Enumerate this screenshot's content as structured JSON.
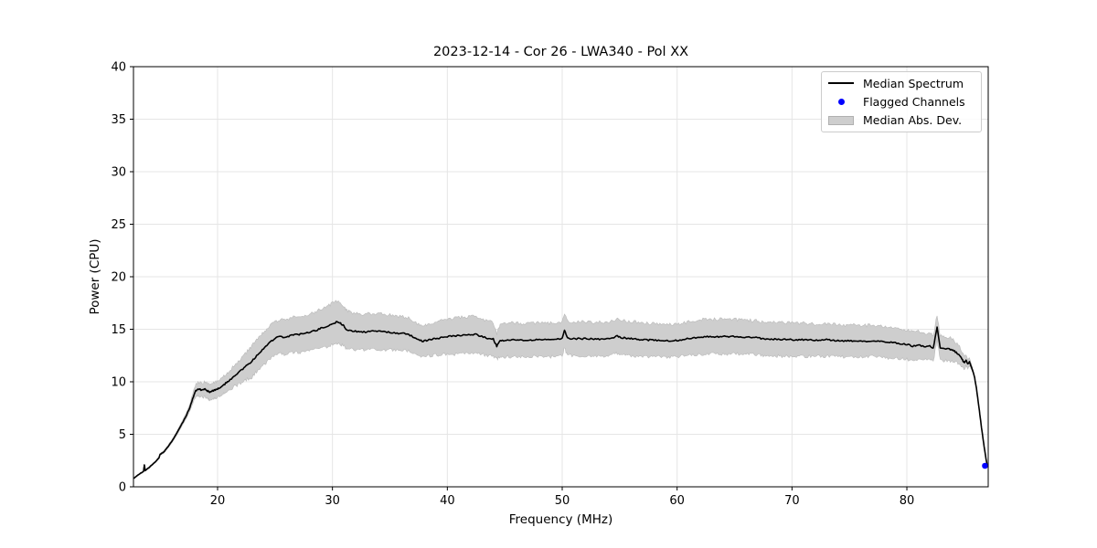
{
  "chart_data": {
    "type": "line",
    "title": "2023-12-14 - Cor 26 - LWA340 - Pol XX",
    "xlabel": "Frequency (MHz)",
    "ylabel": "Power (CPU)",
    "xlim": [
      12.68,
      87.08
    ],
    "ylim": [
      0,
      40
    ],
    "xticks": [
      20,
      30,
      40,
      50,
      60,
      70,
      80
    ],
    "yticks": [
      0,
      5,
      10,
      15,
      20,
      25,
      30,
      35,
      40
    ],
    "grid": true,
    "legend": {
      "position": "upper right",
      "entries": [
        {
          "label": "Median Spectrum",
          "type": "line",
          "color": "#000000"
        },
        {
          "label": "Flagged Channels",
          "type": "marker",
          "color": "#0000ff"
        },
        {
          "label": "Median Abs. Dev.",
          "type": "patch",
          "color": "#cecece"
        }
      ]
    },
    "style": {
      "line_color": "#000000",
      "band_color": "#cecece",
      "band_edge_color": "#b9b9b9",
      "flagged_color": "#0000ff",
      "grid_color": "#e5e5e5",
      "background": "#ffffff",
      "line_jitter": 0.07,
      "band_jitter": 0.16
    },
    "series": [
      {
        "name": "Median Spectrum",
        "type": "line",
        "color": "#000000",
        "point_format": [
          "freq_mhz",
          "power_cpu",
          "median_abs_dev"
        ],
        "points": [
          [
            12.76,
            0.85,
            0.05
          ],
          [
            13.0,
            1.05,
            0.05
          ],
          [
            13.3,
            1.3,
            0.06
          ],
          [
            13.55,
            1.45,
            0.06
          ],
          [
            13.63,
            2.1,
            0.06
          ],
          [
            13.7,
            1.55,
            0.07
          ],
          [
            14.0,
            1.8,
            0.08
          ],
          [
            14.3,
            2.1,
            0.08
          ],
          [
            14.6,
            2.4,
            0.09
          ],
          [
            14.9,
            2.75,
            0.1
          ],
          [
            15.0,
            3.1,
            0.1
          ],
          [
            15.3,
            3.3,
            0.12
          ],
          [
            15.6,
            3.7,
            0.13
          ],
          [
            16.0,
            4.3,
            0.15
          ],
          [
            16.4,
            5.0,
            0.17
          ],
          [
            16.8,
            5.8,
            0.2
          ],
          [
            17.2,
            6.6,
            0.25
          ],
          [
            17.6,
            7.6,
            0.35
          ],
          [
            17.9,
            8.6,
            0.5
          ],
          [
            18.1,
            9.15,
            0.6
          ],
          [
            18.3,
            9.3,
            0.65
          ],
          [
            18.5,
            9.25,
            0.68
          ],
          [
            18.7,
            9.2,
            0.7
          ],
          [
            18.9,
            9.3,
            0.7
          ],
          [
            19.1,
            9.15,
            0.72
          ],
          [
            19.3,
            9.0,
            0.72
          ],
          [
            19.5,
            9.1,
            0.73
          ],
          [
            19.7,
            9.2,
            0.75
          ],
          [
            19.9,
            9.25,
            0.75
          ],
          [
            20.1,
            9.35,
            0.78
          ],
          [
            20.4,
            9.55,
            0.8
          ],
          [
            20.7,
            9.85,
            0.85
          ],
          [
            21.0,
            10.1,
            0.9
          ],
          [
            21.4,
            10.5,
            1.0
          ],
          [
            21.8,
            10.85,
            1.1
          ],
          [
            22.2,
            11.2,
            1.2
          ],
          [
            22.6,
            11.6,
            1.35
          ],
          [
            23.0,
            11.95,
            1.5
          ],
          [
            23.4,
            12.5,
            1.55
          ],
          [
            23.8,
            12.9,
            1.6
          ],
          [
            24.2,
            13.4,
            1.6
          ],
          [
            24.6,
            13.8,
            1.6
          ],
          [
            25.0,
            14.15,
            1.6
          ],
          [
            25.4,
            14.3,
            1.62
          ],
          [
            25.8,
            14.25,
            1.63
          ],
          [
            26.2,
            14.35,
            1.65
          ],
          [
            26.6,
            14.45,
            1.67
          ],
          [
            27.0,
            14.5,
            1.7
          ],
          [
            27.4,
            14.55,
            1.7
          ],
          [
            27.8,
            14.65,
            1.72
          ],
          [
            28.2,
            14.8,
            1.75
          ],
          [
            28.6,
            14.9,
            1.8
          ],
          [
            29.0,
            15.1,
            1.85
          ],
          [
            29.4,
            15.2,
            1.9
          ],
          [
            29.8,
            15.4,
            1.95
          ],
          [
            30.1,
            15.55,
            2.0
          ],
          [
            30.4,
            15.7,
            2.0
          ],
          [
            30.7,
            15.6,
            2.0
          ],
          [
            31.0,
            15.3,
            1.9
          ],
          [
            31.2,
            14.95,
            1.85
          ],
          [
            31.5,
            14.85,
            1.8
          ],
          [
            32.0,
            14.8,
            1.72
          ],
          [
            32.5,
            14.75,
            1.7
          ],
          [
            33.0,
            14.75,
            1.7
          ],
          [
            33.5,
            14.8,
            1.7
          ],
          [
            34.0,
            14.8,
            1.7
          ],
          [
            34.5,
            14.75,
            1.68
          ],
          [
            35.0,
            14.7,
            1.65
          ],
          [
            35.5,
            14.65,
            1.63
          ],
          [
            36.0,
            14.6,
            1.6
          ],
          [
            36.5,
            14.55,
            1.58
          ],
          [
            37.0,
            14.3,
            1.55
          ],
          [
            37.5,
            14.0,
            1.5
          ],
          [
            37.9,
            13.85,
            1.48
          ],
          [
            38.3,
            13.95,
            1.5
          ],
          [
            38.7,
            14.05,
            1.55
          ],
          [
            39.1,
            14.15,
            1.6
          ],
          [
            39.5,
            14.2,
            1.65
          ],
          [
            40.0,
            14.3,
            1.7
          ],
          [
            40.5,
            14.35,
            1.72
          ],
          [
            41.0,
            14.4,
            1.75
          ],
          [
            41.5,
            14.42,
            1.75
          ],
          [
            42.0,
            14.45,
            1.75
          ],
          [
            42.5,
            14.5,
            1.73
          ],
          [
            43.0,
            14.3,
            1.7
          ],
          [
            43.5,
            14.15,
            1.65
          ],
          [
            44.0,
            14.05,
            1.6
          ],
          [
            44.3,
            13.4,
            1.2
          ],
          [
            44.6,
            13.9,
            1.55
          ],
          [
            45.0,
            13.95,
            1.57
          ],
          [
            45.5,
            14.0,
            1.6
          ],
          [
            46.0,
            14.0,
            1.6
          ],
          [
            46.5,
            13.95,
            1.6
          ],
          [
            47.0,
            13.95,
            1.6
          ],
          [
            47.5,
            14.0,
            1.6
          ],
          [
            48.0,
            14.0,
            1.6
          ],
          [
            48.5,
            14.0,
            1.6
          ],
          [
            49.0,
            14.0,
            1.6
          ],
          [
            49.5,
            14.05,
            1.6
          ],
          [
            50.0,
            14.1,
            1.62
          ],
          [
            50.2,
            14.9,
            1.65
          ],
          [
            50.45,
            14.15,
            1.62
          ],
          [
            51.0,
            14.1,
            1.6
          ],
          [
            51.5,
            14.1,
            1.6
          ],
          [
            52.0,
            14.1,
            1.6
          ],
          [
            52.5,
            14.08,
            1.6
          ],
          [
            53.0,
            14.05,
            1.6
          ],
          [
            53.5,
            14.08,
            1.6
          ],
          [
            54.0,
            14.1,
            1.6
          ],
          [
            54.4,
            14.2,
            1.62
          ],
          [
            54.8,
            14.35,
            1.63
          ],
          [
            55.2,
            14.2,
            1.62
          ],
          [
            55.6,
            14.15,
            1.62
          ],
          [
            56.0,
            14.1,
            1.65
          ],
          [
            56.5,
            14.05,
            1.62
          ],
          [
            57.0,
            14.0,
            1.6
          ],
          [
            57.5,
            13.98,
            1.58
          ],
          [
            58.0,
            13.95,
            1.57
          ],
          [
            58.5,
            13.92,
            1.56
          ],
          [
            59.0,
            13.9,
            1.55
          ],
          [
            59.5,
            13.92,
            1.55
          ],
          [
            60.0,
            13.95,
            1.55
          ],
          [
            60.5,
            14.02,
            1.58
          ],
          [
            61.0,
            14.1,
            1.6
          ],
          [
            61.5,
            14.18,
            1.62
          ],
          [
            62.0,
            14.25,
            1.65
          ],
          [
            62.5,
            14.28,
            1.65
          ],
          [
            63.0,
            14.3,
            1.65
          ],
          [
            63.5,
            14.3,
            1.65
          ],
          [
            64.0,
            14.3,
            1.65
          ],
          [
            64.5,
            14.3,
            1.65
          ],
          [
            65.0,
            14.3,
            1.65
          ],
          [
            65.5,
            14.27,
            1.63
          ],
          [
            66.0,
            14.25,
            1.62
          ],
          [
            66.5,
            14.22,
            1.6
          ],
          [
            67.0,
            14.2,
            1.6
          ],
          [
            67.4,
            14.1,
            1.6
          ],
          [
            67.8,
            14.05,
            1.6
          ],
          [
            68.2,
            14.05,
            1.6
          ],
          [
            68.6,
            14.05,
            1.6
          ],
          [
            69.0,
            14.05,
            1.6
          ],
          [
            69.5,
            14.02,
            1.6
          ],
          [
            70.0,
            14.0,
            1.6
          ],
          [
            70.5,
            14.0,
            1.58
          ],
          [
            71.0,
            14.0,
            1.57
          ],
          [
            71.5,
            13.97,
            1.56
          ],
          [
            72.0,
            13.95,
            1.55
          ],
          [
            72.5,
            13.97,
            1.55
          ],
          [
            73.0,
            14.0,
            1.55
          ],
          [
            73.5,
            13.95,
            1.53
          ],
          [
            74.0,
            13.9,
            1.52
          ],
          [
            74.5,
            13.9,
            1.52
          ],
          [
            75.0,
            13.9,
            1.5
          ],
          [
            75.5,
            13.87,
            1.5
          ],
          [
            76.0,
            13.85,
            1.5
          ],
          [
            76.5,
            13.87,
            1.5
          ],
          [
            77.0,
            13.9,
            1.5
          ],
          [
            77.5,
            13.85,
            1.5
          ],
          [
            78.0,
            13.8,
            1.48
          ],
          [
            78.5,
            13.75,
            1.47
          ],
          [
            79.0,
            13.7,
            1.45
          ],
          [
            79.5,
            13.6,
            1.42
          ],
          [
            80.0,
            13.55,
            1.4
          ],
          [
            80.5,
            13.4,
            1.35
          ],
          [
            81.0,
            13.5,
            1.3
          ],
          [
            81.5,
            13.35,
            1.28
          ],
          [
            82.0,
            13.45,
            1.25
          ],
          [
            82.3,
            13.2,
            1.22
          ],
          [
            82.63,
            15.2,
            1.2
          ],
          [
            82.9,
            13.2,
            1.18
          ],
          [
            83.3,
            13.15,
            1.15
          ],
          [
            83.7,
            13.1,
            1.1
          ],
          [
            84.0,
            13.0,
            1.0
          ],
          [
            84.3,
            12.8,
            0.92
          ],
          [
            84.6,
            12.45,
            0.85
          ],
          [
            84.85,
            12.05,
            0.7
          ],
          [
            85.0,
            11.8,
            0.6
          ],
          [
            85.15,
            12.05,
            0.5
          ],
          [
            85.3,
            11.7,
            0.42
          ],
          [
            85.45,
            11.9,
            0.35
          ],
          [
            85.6,
            11.45,
            0.25
          ],
          [
            85.75,
            11.0,
            0.15
          ],
          [
            85.9,
            10.4,
            0.08
          ],
          [
            86.05,
            9.4,
            0.04
          ],
          [
            86.2,
            8.2,
            0.02
          ],
          [
            86.35,
            6.9,
            0.01
          ],
          [
            86.5,
            5.6,
            0.01
          ],
          [
            86.65,
            4.4,
            0.01
          ],
          [
            86.8,
            3.3,
            0.01
          ],
          [
            86.9,
            2.6,
            0.0
          ],
          [
            87.0,
            1.95,
            0.0
          ]
        ]
      },
      {
        "name": "Flagged Channels",
        "type": "scatter",
        "color": "#0000ff",
        "point_format": [
          "freq_mhz",
          "power_cpu"
        ],
        "points": [
          [
            86.8,
            2.0
          ]
        ]
      },
      {
        "name": "Median Abs. Dev.",
        "type": "band",
        "color": "#cecece",
        "derived_from": "Median Spectrum +/- median_abs_dev"
      }
    ]
  }
}
